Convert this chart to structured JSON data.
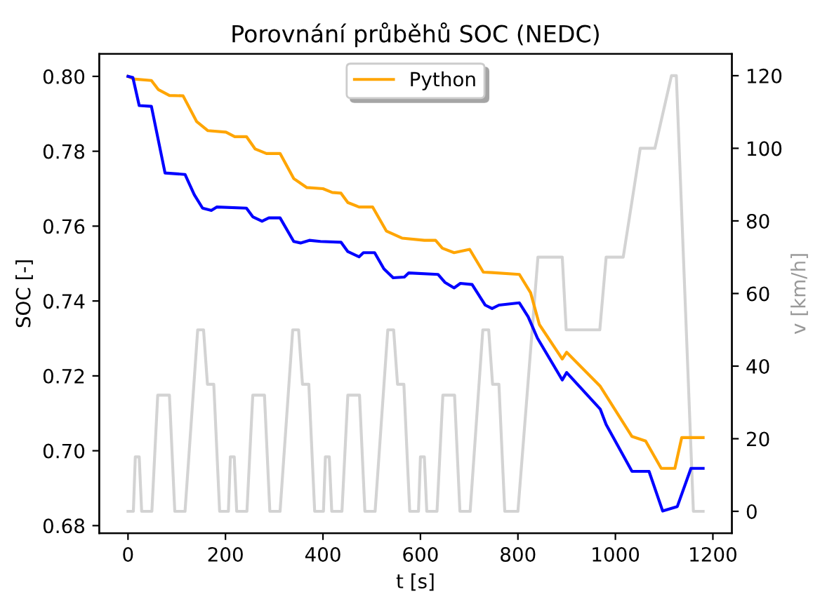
{
  "chart_data": {
    "type": "line",
    "title": "Porovnání průběhů SOC (NEDC)",
    "xlabel": "t [s]",
    "ylabel": "SOC [-]",
    "y2label": "v [km/h]",
    "xlim": [
      -59,
      1239
    ],
    "xticks": [
      0,
      200,
      400,
      600,
      800,
      1000,
      1200
    ],
    "ylim": [
      0.678,
      0.806
    ],
    "yticks": [
      {
        "value": 0.68,
        "label": "0.68"
      },
      {
        "value": 0.7,
        "label": "0.70"
      },
      {
        "value": 0.72,
        "label": "0.72"
      },
      {
        "value": 0.74,
        "label": "0.74"
      },
      {
        "value": 0.76,
        "label": "0.76"
      },
      {
        "value": 0.78,
        "label": "0.78"
      },
      {
        "value": 0.8,
        "label": "0.80"
      }
    ],
    "y2lim": [
      -6,
      126
    ],
    "y2ticks": [
      0,
      20,
      40,
      60,
      80,
      100,
      120
    ],
    "grid": false,
    "legend": "top",
    "series": [
      {
        "name": "Python",
        "color": "#ffa500",
        "x": [
          0,
          11,
          48,
          62,
          85,
          113,
          141,
          164,
          201,
          219,
          243,
          261,
          284,
          312,
          340,
          367,
          400,
          419,
          437,
          451,
          474,
          502,
          530,
          562,
          608,
          631,
          645,
          669,
          701,
          729,
          747,
          803,
          826,
          844,
          891,
          900,
          969,
          1034,
          1062,
          1094,
          1122,
          1136,
          1180
        ],
        "values": [
          0.8,
          0.7993,
          0.7989,
          0.7965,
          0.7949,
          0.7948,
          0.7879,
          0.7855,
          0.7851,
          0.7839,
          0.7839,
          0.7806,
          0.7794,
          0.7794,
          0.7727,
          0.7703,
          0.77,
          0.769,
          0.7688,
          0.7663,
          0.7651,
          0.7651,
          0.7587,
          0.7568,
          0.7562,
          0.7562,
          0.7541,
          0.7529,
          0.7538,
          0.7477,
          0.7476,
          0.7471,
          0.7422,
          0.7337,
          0.7245,
          0.7263,
          0.7172,
          0.7038,
          0.7026,
          0.6953,
          0.6953,
          0.7035,
          0.7035
        ]
      },
      {
        "color": "#0000ff",
        "x": [
          0,
          10,
          23,
          48,
          76,
          117,
          136,
          153,
          171,
          182,
          243,
          256,
          275,
          289,
          312,
          340,
          354,
          372,
          395,
          437,
          451,
          474,
          483,
          506,
          525,
          544,
          567,
          576,
          636,
          650,
          669,
          682,
          706,
          733,
          747,
          761,
          803,
          821,
          840,
          891,
          900,
          969,
          981,
          1034,
          1069,
          1097,
          1127,
          1155,
          1180
        ],
        "values": [
          0.8,
          0.7997,
          0.7922,
          0.792,
          0.7742,
          0.7738,
          0.7684,
          0.7648,
          0.7642,
          0.7651,
          0.7648,
          0.7625,
          0.7613,
          0.7622,
          0.7622,
          0.7559,
          0.7555,
          0.7562,
          0.7559,
          0.7557,
          0.7532,
          0.7518,
          0.7529,
          0.7529,
          0.7486,
          0.7462,
          0.7464,
          0.7475,
          0.7471,
          0.745,
          0.7435,
          0.7447,
          0.7444,
          0.7389,
          0.738,
          0.7389,
          0.7395,
          0.7358,
          0.7301,
          0.7189,
          0.7209,
          0.7111,
          0.707,
          0.6945,
          0.6945,
          0.6839,
          0.6851,
          0.6953,
          0.6953
        ]
      },
      {
        "color": "#d3d3d3",
        "axis": "y2",
        "x": [
          0,
          11,
          15,
          23,
          28,
          49,
          61,
          85,
          96,
          117,
          143,
          155,
          163,
          176,
          188,
          195,
          206,
          210,
          218,
          223,
          244,
          256,
          280,
          291,
          312,
          338,
          350,
          358,
          371,
          383,
          390,
          401,
          405,
          413,
          418,
          439,
          451,
          475,
          486,
          507,
          533,
          545,
          553,
          566,
          578,
          585,
          596,
          600,
          608,
          613,
          634,
          646,
          670,
          681,
          702,
          728,
          740,
          748,
          761,
          773,
          780,
          800,
          841,
          891,
          899,
          968,
          981,
          1016,
          1051,
          1081,
          1115,
          1125,
          1160,
          1180
        ],
        "values": [
          0,
          0,
          15,
          15,
          0,
          0,
          32,
          32,
          0,
          0,
          50,
          50,
          35,
          35,
          0,
          0,
          0,
          15,
          15,
          0,
          0,
          32,
          32,
          0,
          0,
          50,
          50,
          35,
          35,
          0,
          0,
          0,
          15,
          15,
          0,
          0,
          32,
          32,
          0,
          0,
          50,
          50,
          35,
          35,
          0,
          0,
          0,
          15,
          15,
          0,
          0,
          32,
          32,
          0,
          0,
          50,
          50,
          35,
          35,
          0,
          0,
          0,
          70,
          70,
          50,
          50,
          70,
          70,
          100,
          100,
          120,
          120,
          0,
          0
        ]
      }
    ]
  }
}
